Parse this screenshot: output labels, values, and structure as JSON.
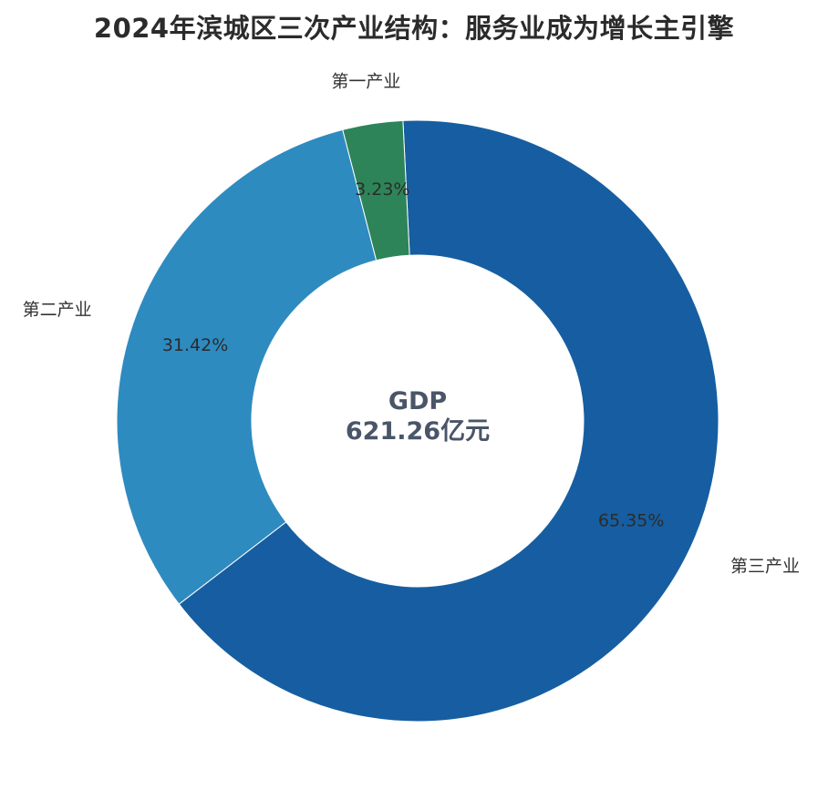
{
  "chart_data": {
    "type": "pie",
    "variant": "donut",
    "title": "2024年滨城区三次产业结构：服务业成为增长主引擎",
    "categories": [
      "第一产业",
      "第二产业",
      "第三产业"
    ],
    "values": [
      3.23,
      31.42,
      65.35
    ],
    "value_labels": [
      "3.23%",
      "31.42%",
      "65.35%"
    ],
    "colors": [
      "#2e8459",
      "#2e8bc0",
      "#165ea1"
    ],
    "center": {
      "line1": "GDP",
      "line2": "621.26亿元"
    },
    "legend": "none"
  }
}
